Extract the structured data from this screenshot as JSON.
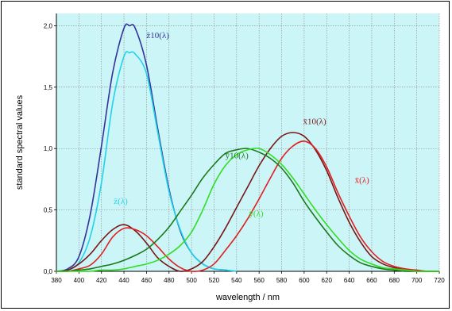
{
  "chart_data": {
    "type": "line",
    "xlabel": "wavelength / nm",
    "ylabel": "standard spectral values",
    "xlim": [
      380,
      720
    ],
    "ylim": [
      0,
      2.1
    ],
    "xticks": [
      "380",
      "400",
      "420",
      "440",
      "460",
      "480",
      "500",
      "520",
      "540",
      "560",
      "580",
      "600",
      "620",
      "640",
      "660",
      "680",
      "700",
      "720"
    ],
    "yticks": [
      "0,0",
      "0,5",
      "1,0",
      "1,5",
      "2,0"
    ],
    "grid": true,
    "plot_background": "#ccf5f7",
    "series": [
      {
        "name": "z̄10(λ)",
        "color": "#33339b",
        "x": [
          380,
          390,
          400,
          410,
          420,
          430,
          440,
          445,
          450,
          460,
          470,
          480,
          490,
          500,
          510,
          520,
          530,
          540
        ],
        "y": [
          0.0,
          0.02,
          0.12,
          0.46,
          1.02,
          1.62,
          1.98,
          2.0,
          1.98,
          1.68,
          1.16,
          0.67,
          0.33,
          0.15,
          0.06,
          0.02,
          0.01,
          0.0
        ]
      },
      {
        "name": "z̄(λ)",
        "color": "#21d3e8",
        "x": [
          380,
          390,
          400,
          410,
          420,
          430,
          440,
          445,
          450,
          460,
          470,
          480,
          490,
          500,
          510,
          520,
          530,
          540
        ],
        "y": [
          0.0,
          0.01,
          0.07,
          0.28,
          0.72,
          1.37,
          1.75,
          1.78,
          1.77,
          1.61,
          1.13,
          0.65,
          0.34,
          0.15,
          0.06,
          0.02,
          0.01,
          0.0
        ]
      },
      {
        "name": "x̄10(λ)",
        "color": "#7a1616",
        "x": [
          380,
          390,
          400,
          410,
          420,
          430,
          440,
          450,
          460,
          470,
          480,
          490,
          500,
          510,
          520,
          530,
          540,
          550,
          560,
          570,
          580,
          590,
          600,
          610,
          620,
          630,
          640,
          650,
          660,
          670,
          680,
          690,
          700,
          710,
          720
        ],
        "y": [
          0.0,
          0.01,
          0.06,
          0.14,
          0.25,
          0.34,
          0.38,
          0.33,
          0.23,
          0.11,
          0.04,
          0.0,
          0.02,
          0.08,
          0.2,
          0.35,
          0.52,
          0.69,
          0.86,
          1.0,
          1.1,
          1.13,
          1.1,
          0.99,
          0.82,
          0.6,
          0.4,
          0.24,
          0.12,
          0.06,
          0.03,
          0.01,
          0.0,
          0.0,
          0.0
        ]
      },
      {
        "name": "x̄(λ)",
        "color": "#e02020",
        "x": [
          380,
          390,
          400,
          410,
          420,
          430,
          440,
          450,
          460,
          470,
          480,
          490,
          500,
          510,
          520,
          530,
          540,
          550,
          560,
          570,
          580,
          590,
          600,
          610,
          620,
          630,
          640,
          650,
          660,
          670,
          680,
          690,
          700,
          710,
          720
        ],
        "y": [
          0.0,
          0.0,
          0.02,
          0.05,
          0.14,
          0.28,
          0.35,
          0.34,
          0.29,
          0.2,
          0.1,
          0.03,
          0.0,
          0.01,
          0.06,
          0.17,
          0.29,
          0.43,
          0.59,
          0.76,
          0.92,
          1.02,
          1.06,
          1.0,
          0.85,
          0.64,
          0.45,
          0.28,
          0.16,
          0.08,
          0.04,
          0.02,
          0.01,
          0.0,
          0.0
        ]
      },
      {
        "name": "ȳ10(λ)",
        "color": "#1a7a1a",
        "x": [
          380,
          390,
          400,
          410,
          420,
          430,
          440,
          450,
          460,
          470,
          480,
          490,
          500,
          510,
          520,
          530,
          540,
          550,
          560,
          570,
          580,
          590,
          600,
          610,
          620,
          630,
          640,
          650,
          660,
          670,
          680,
          690,
          700,
          710,
          720
        ],
        "y": [
          0.0,
          0.0,
          0.01,
          0.02,
          0.04,
          0.06,
          0.09,
          0.13,
          0.18,
          0.26,
          0.36,
          0.49,
          0.62,
          0.76,
          0.87,
          0.96,
          0.99,
          1.0,
          0.97,
          0.92,
          0.84,
          0.72,
          0.57,
          0.44,
          0.32,
          0.21,
          0.13,
          0.07,
          0.04,
          0.02,
          0.01,
          0.0,
          0.0,
          0.0,
          0.0
        ]
      },
      {
        "name": "ȳ(λ)",
        "color": "#33dd22",
        "x": [
          380,
          390,
          400,
          410,
          420,
          430,
          440,
          450,
          460,
          470,
          480,
          490,
          500,
          510,
          520,
          530,
          540,
          550,
          560,
          570,
          580,
          590,
          600,
          610,
          620,
          630,
          640,
          650,
          660,
          670,
          680,
          690,
          700,
          710,
          720
        ],
        "y": [
          0.0,
          0.0,
          0.0,
          0.0,
          0.01,
          0.01,
          0.02,
          0.04,
          0.06,
          0.09,
          0.14,
          0.21,
          0.32,
          0.5,
          0.71,
          0.86,
          0.95,
          0.99,
          1.0,
          0.95,
          0.87,
          0.76,
          0.63,
          0.5,
          0.38,
          0.27,
          0.17,
          0.1,
          0.06,
          0.03,
          0.02,
          0.01,
          0.0,
          0.0,
          0.0
        ]
      }
    ],
    "annotations": [
      {
        "text": "z̄10(λ)",
        "x": 460,
        "y": 1.9,
        "color": "#33339b"
      },
      {
        "text": "z̄(λ)",
        "x": 431,
        "y": 0.55,
        "color": "#21d3e8"
      },
      {
        "text": "x̄10(λ)",
        "x": 599,
        "y": 1.2,
        "color": "#7a1616"
      },
      {
        "text": "x̄(λ)",
        "x": 645,
        "y": 0.72,
        "color": "#e02020"
      },
      {
        "text": "ȳ10(λ)",
        "x": 530,
        "y": 0.92,
        "color": "#1a7a1a"
      },
      {
        "text": "ȳ(λ)",
        "x": 551,
        "y": 0.45,
        "color": "#33dd22"
      }
    ]
  }
}
